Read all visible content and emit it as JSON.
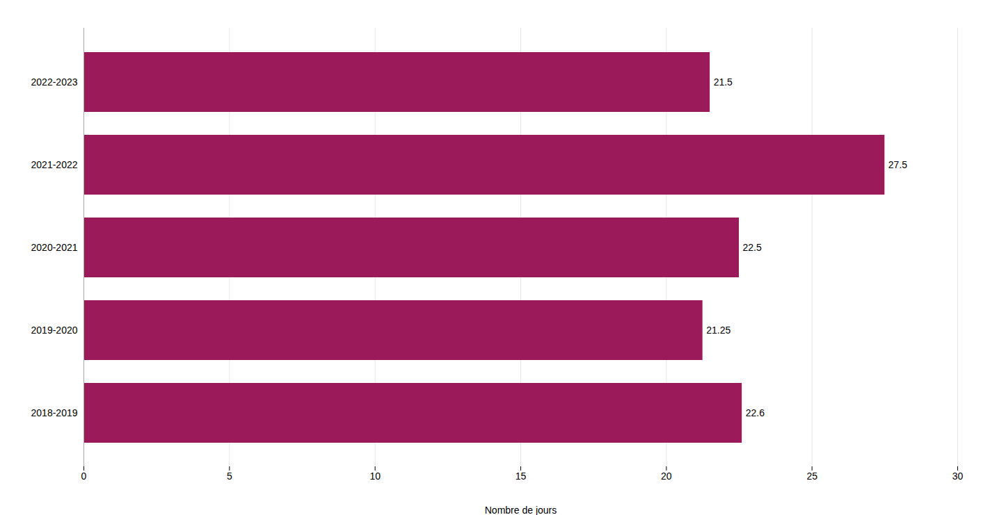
{
  "chart_data": {
    "type": "bar",
    "orientation": "horizontal",
    "categories": [
      "2018-2019",
      "2019-2020",
      "2020-2021",
      "2021-2022",
      "2022-2023"
    ],
    "values": [
      22.6,
      21.25,
      22.5,
      27.5,
      21.5
    ],
    "color": "#9B1B5A",
    "xlabel": "Nombre de jours",
    "xlim": [
      0,
      30
    ],
    "xticks": [
      0,
      5,
      10,
      15,
      20,
      25,
      30
    ],
    "grid": true,
    "data_labels": true
  }
}
